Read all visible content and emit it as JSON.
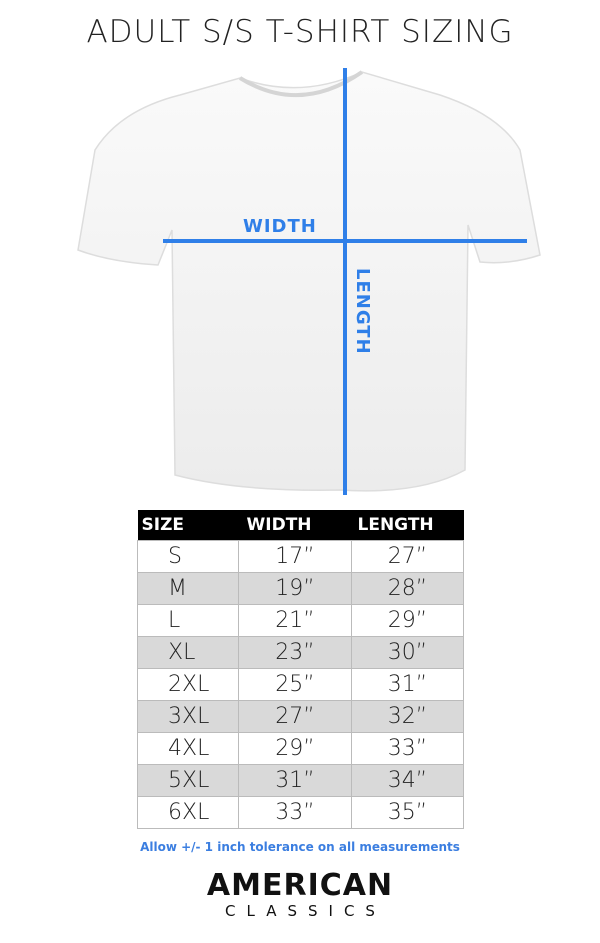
{
  "title": "ADULT S/S T-SHIRT SIZING",
  "diagram": {
    "width_label": "WIDTH",
    "length_label": "LENGTH",
    "line_color": "#2f7fe8"
  },
  "table": {
    "headers": [
      "SIZE",
      "WIDTH",
      "LENGTH"
    ],
    "rows": [
      [
        "S",
        "17”",
        "27”"
      ],
      [
        "M",
        "19”",
        "28”"
      ],
      [
        "L",
        "21”",
        "29”"
      ],
      [
        "XL",
        "23”",
        "30”"
      ],
      [
        "2XL",
        "25”",
        "31”"
      ],
      [
        "3XL",
        "27”",
        "32”"
      ],
      [
        "4XL",
        "29”",
        "33”"
      ],
      [
        "5XL",
        "31”",
        "34”"
      ],
      [
        "6XL",
        "33”",
        "35”"
      ]
    ]
  },
  "note": "Allow +/- 1 inch tolerance on all measurements",
  "logo": {
    "line1": "AMERICAN",
    "line2": "CLASSICS"
  }
}
